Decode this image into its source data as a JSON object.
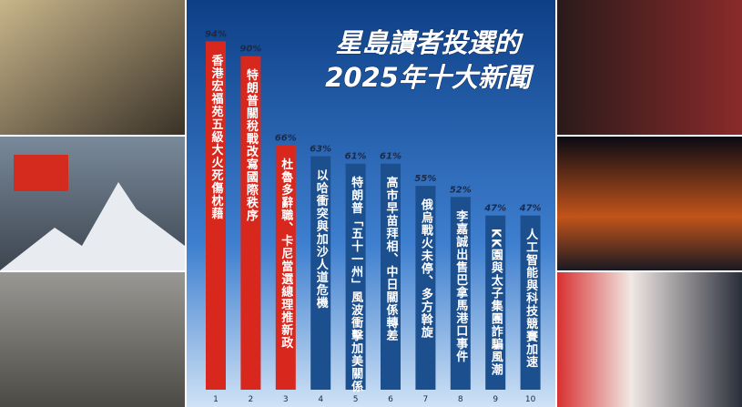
{
  "chart_data": {
    "type": "bar",
    "title": [
      "星島讀者投選的",
      "2025年十大新聞"
    ],
    "categories": [
      "香港宏福苑五級大火死傷枕藉",
      "特朗普關稅戰改寫國際秩序",
      "杜魯多辭職、卡尼當選總理推新政",
      "以哈衝突與加沙人道危機",
      "特朗普「五十一州」風波衝擊加美關係",
      "高市早苗拜相、中日關係轉差",
      "俄烏戰火未停、多方斡旋",
      "李嘉誠出售巴拿馬港口事件",
      "KK園與太子集團詐騙風潮",
      "人工智能與科技競賽加速"
    ],
    "ranks": [
      "1",
      "2",
      "3",
      "4",
      "5",
      "6",
      "7",
      "8",
      "9",
      "10"
    ],
    "values": [
      94,
      90,
      66,
      63,
      61,
      61,
      55,
      52,
      47,
      47
    ],
    "value_labels": [
      "94%",
      "90%",
      "66%",
      "63%",
      "61%",
      "61%",
      "55%",
      "52%",
      "47%",
      "47%"
    ],
    "colors": [
      "#d8281e",
      "#d8281e",
      "#d8281e",
      "#1c4f8e",
      "#1c4f8e",
      "#1c4f8e",
      "#1c4f8e",
      "#1c4f8e",
      "#1c4f8e",
      "#1c4f8e"
    ]
  }
}
